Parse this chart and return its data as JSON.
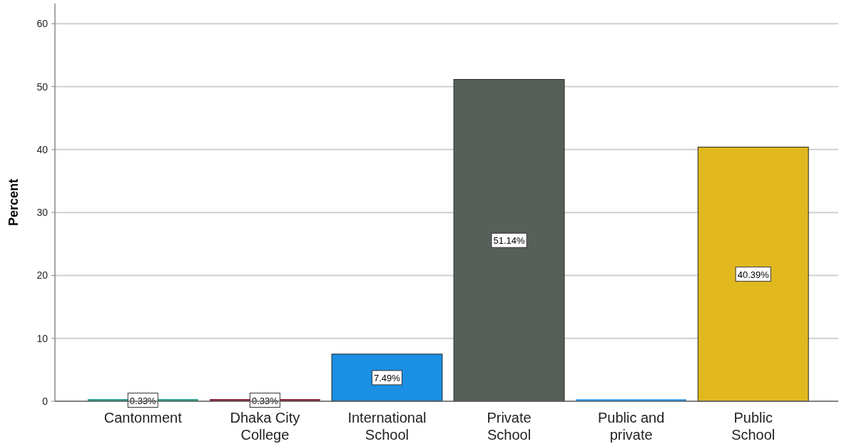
{
  "chart_data": {
    "type": "bar",
    "ylabel": "Percent",
    "categories": [
      "Cantonment",
      "Dhaka City College",
      "International School",
      "Private School",
      "Public and private",
      "Public School"
    ],
    "values": [
      0.33,
      0.33,
      7.49,
      51.14,
      0.3,
      40.39
    ],
    "colors": [
      "#1f9a84",
      "#8a1a30",
      "#1a8fe3",
      "#566059",
      "#1a8fe3",
      "#e1b91f"
    ],
    "value_labels": [
      "0.33%",
      "0.33%",
      "7.49%",
      "51.14%",
      null,
      "40.39%"
    ],
    "ylim": [
      0,
      63.2
    ],
    "yticks": [
      0,
      10,
      20,
      30,
      40,
      50,
      60
    ],
    "grid": "y"
  }
}
